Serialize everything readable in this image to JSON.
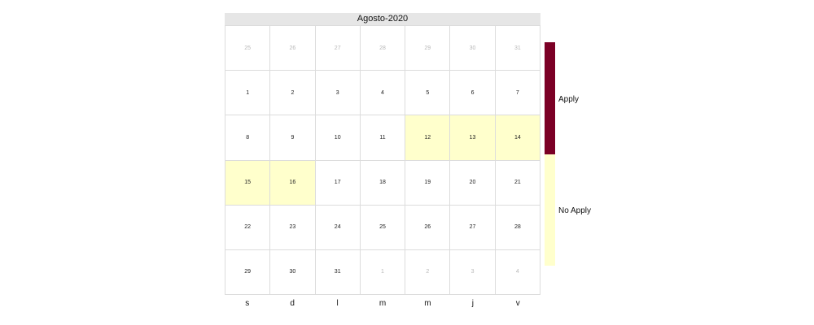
{
  "colors": {
    "apply": "#7b0025",
    "no_apply": "#ffffcc",
    "outside_day_text": "#b8b8b8"
  },
  "chart_data": {
    "type": "heatmap",
    "title": "Agosto-2020",
    "weekdays": [
      "s",
      "d",
      "l",
      "m",
      "m",
      "j",
      "v"
    ],
    "weeks": [
      [
        {
          "day": "25",
          "in_month": false
        },
        {
          "day": "26",
          "in_month": false
        },
        {
          "day": "27",
          "in_month": false
        },
        {
          "day": "28",
          "in_month": false
        },
        {
          "day": "29",
          "in_month": false
        },
        {
          "day": "30",
          "in_month": false
        },
        {
          "day": "31",
          "in_month": false
        }
      ],
      [
        {
          "day": "1",
          "in_month": true,
          "status": "Apply"
        },
        {
          "day": "2",
          "in_month": true,
          "status": "Apply"
        },
        {
          "day": "3",
          "in_month": true,
          "status": "Apply"
        },
        {
          "day": "4",
          "in_month": true,
          "status": "Apply"
        },
        {
          "day": "5",
          "in_month": true,
          "status": "Apply"
        },
        {
          "day": "6",
          "in_month": true,
          "status": "Apply"
        },
        {
          "day": "7",
          "in_month": true,
          "status": "Apply"
        }
      ],
      [
        {
          "day": "8",
          "in_month": true,
          "status": "Apply"
        },
        {
          "day": "9",
          "in_month": true,
          "status": "Apply"
        },
        {
          "day": "10",
          "in_month": true,
          "status": "Apply"
        },
        {
          "day": "11",
          "in_month": true,
          "status": "Apply"
        },
        {
          "day": "12",
          "in_month": true,
          "status": "No Apply"
        },
        {
          "day": "13",
          "in_month": true,
          "status": "No Apply"
        },
        {
          "day": "14",
          "in_month": true,
          "status": "No Apply"
        }
      ],
      [
        {
          "day": "15",
          "in_month": true,
          "status": "No Apply"
        },
        {
          "day": "16",
          "in_month": true,
          "status": "No Apply"
        },
        {
          "day": "17",
          "in_month": true,
          "status": "Apply"
        },
        {
          "day": "18",
          "in_month": true,
          "status": "Apply"
        },
        {
          "day": "19",
          "in_month": true,
          "status": "Apply"
        },
        {
          "day": "20",
          "in_month": true,
          "status": "Apply"
        },
        {
          "day": "21",
          "in_month": true,
          "status": "Apply"
        }
      ],
      [
        {
          "day": "22",
          "in_month": true,
          "status": "Apply"
        },
        {
          "day": "23",
          "in_month": true,
          "status": "Apply"
        },
        {
          "day": "24",
          "in_month": true,
          "status": "Apply"
        },
        {
          "day": "25",
          "in_month": true,
          "status": "Apply"
        },
        {
          "day": "26",
          "in_month": true,
          "status": "Apply"
        },
        {
          "day": "27",
          "in_month": true,
          "status": "Apply"
        },
        {
          "day": "28",
          "in_month": true,
          "status": "Apply"
        }
      ],
      [
        {
          "day": "29",
          "in_month": true,
          "status": "Apply"
        },
        {
          "day": "30",
          "in_month": true,
          "status": "Apply"
        },
        {
          "day": "31",
          "in_month": true,
          "status": "Apply"
        },
        {
          "day": "1",
          "in_month": false
        },
        {
          "day": "2",
          "in_month": false
        },
        {
          "day": "3",
          "in_month": false
        },
        {
          "day": "4",
          "in_month": false
        }
      ]
    ],
    "legend": {
      "placement": "right",
      "entries": [
        {
          "label": "Apply",
          "color": "#7b0025"
        },
        {
          "label": "No Apply",
          "color": "#ffffcc"
        }
      ]
    }
  }
}
